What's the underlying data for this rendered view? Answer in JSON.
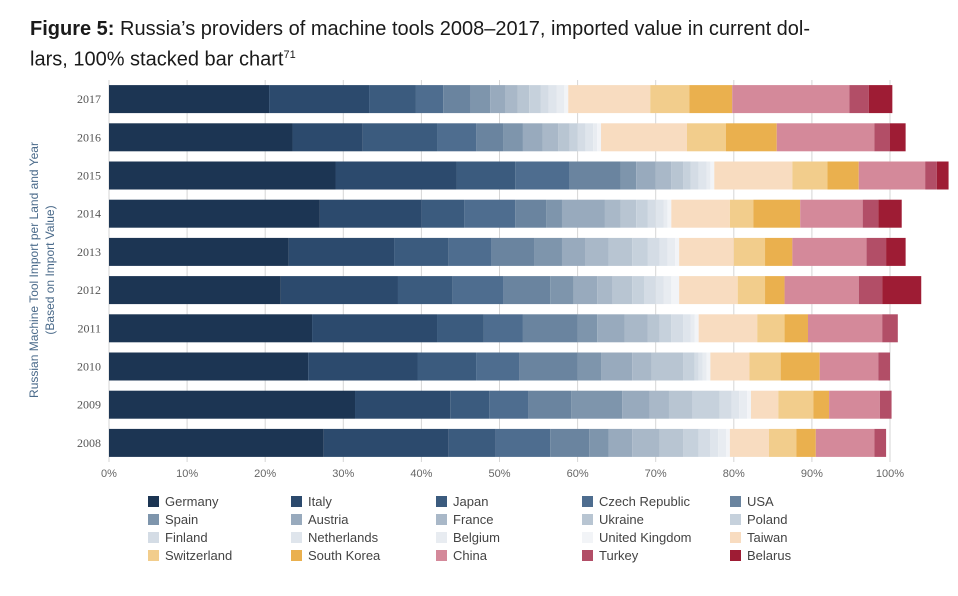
{
  "figure": {
    "label": "Figure 5:",
    "title": "Russia’s providers of machine tools 2008–2017, imported value in current dol-",
    "title_line2": "lars, 100% stacked bar chart",
    "footnote": "71"
  },
  "chart_data": {
    "type": "bar",
    "orientation": "horizontal",
    "stacked": "100%",
    "title": "Russia’s providers of machine tools 2008–2017, imported value in current dollars, 100% stacked bar chart",
    "ylabel_line1": "Russian Machine Tool Import per Land and Year",
    "ylabel_line2": "(Based on Import Value)",
    "xlim": [
      0,
      100
    ],
    "xticks": [
      "0%",
      "10%",
      "20%",
      "30%",
      "40%",
      "50%",
      "60%",
      "70%",
      "80%",
      "90%",
      "100%"
    ],
    "grid": true,
    "legend_position": "bottom",
    "categories": [
      "2017",
      "2016",
      "2015",
      "2014",
      "2013",
      "2012",
      "2011",
      "2010",
      "2009",
      "2008"
    ],
    "series": [
      {
        "name": "Germany",
        "color": "#1c3553",
        "values": [
          20.5,
          23.5,
          29.0,
          27.0,
          23.0,
          22.0,
          26.0,
          25.5,
          31.5,
          27.5
        ]
      },
      {
        "name": "Italy",
        "color": "#2c4a6d",
        "values": [
          12.8,
          9.0,
          15.5,
          13.0,
          13.5,
          15.0,
          16.0,
          14.0,
          12.2,
          16.0
        ]
      },
      {
        "name": "Japan",
        "color": "#3b5b7e",
        "values": [
          6.0,
          9.5,
          7.5,
          5.5,
          7.0,
          7.0,
          6.0,
          7.5,
          5.0,
          6.0
        ]
      },
      {
        "name": "Czech Republic",
        "color": "#4e6d8f",
        "values": [
          3.5,
          5.0,
          7.0,
          6.5,
          5.5,
          6.5,
          5.0,
          5.5,
          5.0,
          7.0
        ]
      },
      {
        "name": "USA",
        "color": "#6a849f",
        "values": [
          3.5,
          3.5,
          6.5,
          4.0,
          5.5,
          6.0,
          7.0,
          7.5,
          5.5,
          5.0
        ]
      },
      {
        "name": "Spain",
        "color": "#7e95ac",
        "values": [
          2.5,
          2.5,
          2.0,
          2.0,
          3.5,
          3.0,
          2.5,
          3.0,
          6.5,
          2.5
        ]
      },
      {
        "name": "Austria",
        "color": "#98aabd",
        "values": [
          2.0,
          2.5,
          2.5,
          5.5,
          3.0,
          3.0,
          3.5,
          4.0,
          3.5,
          3.0
        ]
      },
      {
        "name": "France",
        "color": "#a9b8c8",
        "values": [
          1.5,
          2.0,
          2.0,
          2.0,
          3.0,
          2.0,
          3.0,
          2.5,
          2.5,
          3.5
        ]
      },
      {
        "name": "Ukraine",
        "color": "#b8c5d2",
        "values": [
          1.5,
          1.5,
          1.5,
          2.0,
          3.0,
          2.5,
          1.5,
          4.0,
          3.0,
          3.0
        ]
      },
      {
        "name": "Poland",
        "color": "#c6d1dc",
        "values": [
          1.5,
          1.0,
          1.0,
          1.5,
          2.0,
          1.5,
          1.5,
          1.5,
          3.5,
          2.0
        ]
      },
      {
        "name": "Finland",
        "color": "#d4dce5",
        "values": [
          1.0,
          1.0,
          1.0,
          1.0,
          1.5,
          1.5,
          1.5,
          0.5,
          1.5,
          1.5
        ]
      },
      {
        "name": "Netherlands",
        "color": "#dfe5ec",
        "values": [
          1.0,
          1.0,
          1.0,
          1.0,
          1.0,
          1.0,
          1.0,
          0.5,
          1.0,
          1.0
        ]
      },
      {
        "name": "Belgium",
        "color": "#e8ecf1",
        "values": [
          1.0,
          0.5,
          0.5,
          0.5,
          1.0,
          1.0,
          0.5,
          0.5,
          1.0,
          1.0
        ]
      },
      {
        "name": "United Kingdom",
        "color": "#f2f4f7",
        "values": [
          0.5,
          0.5,
          0.5,
          0.5,
          0.5,
          1.0,
          0.5,
          0.5,
          0.5,
          0.5
        ]
      },
      {
        "name": "Taiwan",
        "color": "#f8dcc0",
        "values": [
          10.5,
          11.0,
          10.0,
          7.5,
          7.0,
          7.5,
          7.5,
          5.0,
          3.5,
          5.0
        ]
      },
      {
        "name": "Switzerland",
        "color": "#f2cd8c",
        "values": [
          5.0,
          5.0,
          4.5,
          3.0,
          4.0,
          3.5,
          3.5,
          4.0,
          4.5,
          3.5
        ]
      },
      {
        "name": "South Korea",
        "color": "#eab04e",
        "values": [
          5.5,
          6.5,
          4.0,
          6.0,
          3.5,
          2.5,
          3.0,
          5.0,
          2.0,
          2.5
        ]
      },
      {
        "name": "China",
        "color": "#d4899a",
        "values": [
          15.0,
          12.5,
          8.5,
          8.0,
          9.5,
          9.5,
          9.5,
          7.5,
          6.5,
          7.5
        ]
      },
      {
        "name": "Turkey",
        "color": "#b24e67",
        "values": [
          2.5,
          2.0,
          1.5,
          2.0,
          2.5,
          3.0,
          2.0,
          1.5,
          1.5,
          1.5
        ]
      },
      {
        "name": "Belarus",
        "color": "#9e1c34",
        "values": [
          3.0,
          2.0,
          1.5,
          3.0,
          2.5,
          5.0,
          0.0,
          0.0,
          0.0,
          0.0
        ]
      }
    ]
  }
}
